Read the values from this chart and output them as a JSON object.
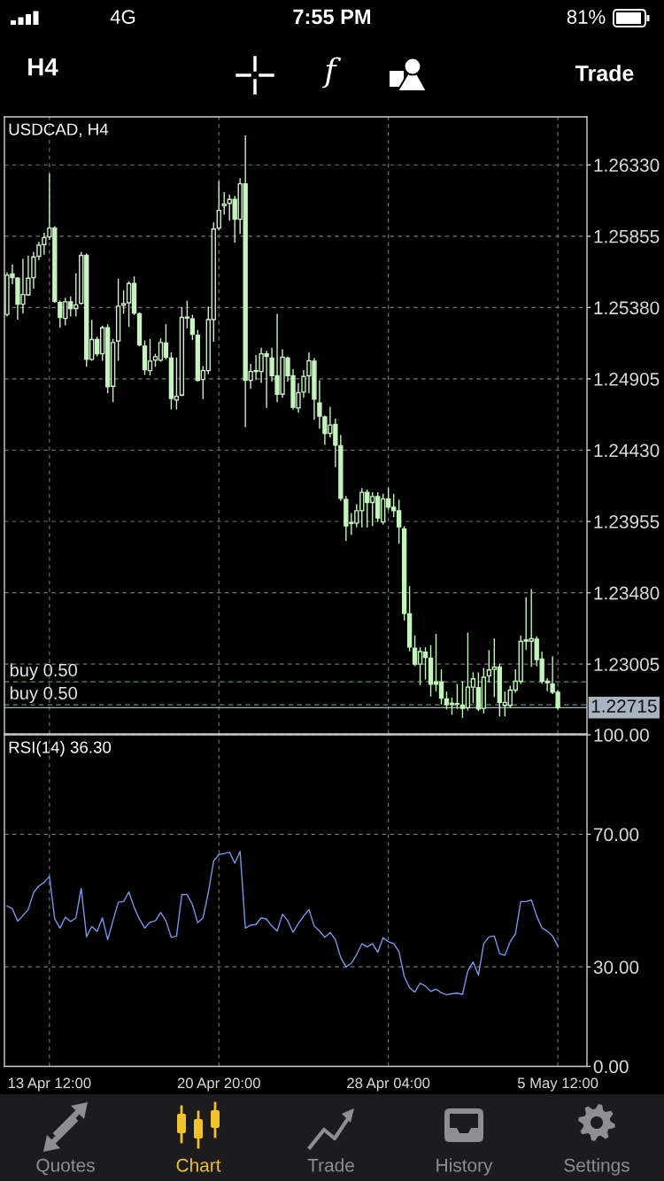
{
  "chart_data": [
    {
      "type": "other",
      "annotations": [
        "4G",
        "7:55 PM",
        "81%",
        "H4",
        "f",
        "Trade"
      ]
    },
    {
      "type": "candlestick",
      "title": "USDCAD, H4",
      "color": "#c6f4bf",
      "categories": [
        null,
        null,
        null,
        null,
        null,
        null,
        null,
        null,
        null,
        null,
        null,
        null,
        null,
        null,
        null,
        null,
        null,
        null,
        null,
        null,
        null,
        null,
        null,
        null,
        null,
        null,
        null,
        null,
        null,
        null,
        null,
        null,
        null,
        null,
        null,
        null,
        null,
        null,
        null,
        null,
        null,
        null,
        null,
        null,
        null,
        null,
        null,
        null,
        null,
        null,
        null,
        null,
        null,
        null,
        null,
        null,
        null,
        null,
        null,
        null,
        null,
        null,
        null,
        null,
        null,
        null,
        null,
        null,
        null,
        null,
        null,
        null,
        null,
        null,
        null,
        null,
        null,
        null,
        null,
        null,
        null,
        null,
        null,
        null,
        null,
        null,
        null,
        null,
        null,
        null,
        null,
        null,
        null,
        null,
        null,
        null,
        null,
        null,
        null,
        null,
        null,
        null,
        null,
        null,
        null,
        null,
        null,
        null,
        null,
        null
      ],
      "ohlc": [
        [
          1.25334,
          1.25609,
          1.25324,
          1.25595
        ],
        [
          1.25603,
          1.25662,
          1.2554,
          1.25579
        ],
        [
          1.25575,
          1.25579,
          1.25304,
          1.25402
        ],
        [
          1.25402,
          1.25701,
          1.25343,
          1.25467
        ],
        [
          1.25465,
          1.25721,
          1.25461,
          1.25575
        ],
        [
          1.25579,
          1.25746,
          1.2551,
          1.25717
        ],
        [
          1.25721,
          1.25815,
          1.25701,
          1.25795
        ],
        [
          1.25799,
          1.25874,
          1.25736,
          1.25846
        ],
        [
          1.2585,
          1.26267,
          1.25835,
          1.25909
        ],
        [
          1.25909,
          1.25917,
          1.25416,
          1.25422
        ],
        [
          1.25414,
          1.25422,
          1.25249,
          1.25314
        ],
        [
          1.25308,
          1.25442,
          1.25265,
          1.25418
        ],
        [
          1.25418,
          1.25451,
          1.25324,
          1.25373
        ],
        [
          1.25373,
          1.25603,
          1.25324,
          1.25398
        ],
        [
          1.25408,
          1.25746,
          1.25402,
          1.25727
        ],
        [
          1.25727,
          1.25736,
          1.2499,
          1.25035
        ],
        [
          1.25035,
          1.25294,
          1.25029,
          1.25167
        ],
        [
          1.25167,
          1.25182,
          1.25059,
          1.25072
        ],
        [
          1.25072,
          1.25255,
          1.25029,
          1.25245
        ],
        [
          1.25245,
          1.25265,
          1.24813,
          1.24852
        ],
        [
          1.24856,
          1.25167,
          1.24754,
          1.25147
        ],
        [
          1.25157,
          1.25569,
          1.25029,
          1.25389
        ],
        [
          1.25395,
          1.25491,
          1.25343,
          1.25406
        ],
        [
          1.25412,
          1.2555,
          1.25255,
          1.2554
        ],
        [
          1.2554,
          1.25583,
          1.25334,
          1.25343
        ],
        [
          1.25338,
          1.25343,
          1.25127,
          1.25131
        ],
        [
          1.25123,
          1.25157,
          1.24935,
          1.24966
        ],
        [
          1.2496,
          1.25167,
          1.24931,
          1.25023
        ],
        [
          1.25029,
          1.25068,
          1.2499,
          1.25053
        ],
        [
          1.25029,
          1.25171,
          1.25023,
          1.25147
        ],
        [
          1.25143,
          1.25265,
          1.25039,
          1.25049
        ],
        [
          1.25043,
          1.25078,
          1.24705,
          1.24774
        ],
        [
          1.24764,
          1.25043,
          1.24705,
          1.24789
        ],
        [
          1.24797,
          1.25379,
          1.24793,
          1.25314
        ],
        [
          1.2531,
          1.25422,
          1.25245,
          1.25316
        ],
        [
          1.25304,
          1.25328,
          1.25167,
          1.25202
        ],
        [
          1.25196,
          1.25226,
          1.24891,
          1.24895
        ],
        [
          1.24901,
          1.24986,
          1.24774,
          1.2496
        ],
        [
          1.2496,
          1.25383,
          1.24941,
          1.253
        ],
        [
          1.253,
          1.25943,
          1.25157,
          1.25903
        ],
        [
          1.25909,
          1.26218,
          1.25898,
          1.26027
        ],
        [
          1.26059,
          1.26145,
          1.26002,
          1.2607
        ],
        [
          1.26074,
          1.26129,
          1.25962,
          1.261
        ],
        [
          1.261,
          1.2612,
          1.25815,
          1.25968
        ],
        [
          1.25968,
          1.26237,
          1.25874,
          1.26204
        ],
        [
          1.26204,
          1.26522,
          1.24587,
          1.24895
        ],
        [
          1.24895,
          1.25,
          1.24842,
          1.24954
        ],
        [
          1.24954,
          1.25059,
          1.24901,
          1.2496
        ],
        [
          1.24954,
          1.25108,
          1.24882,
          1.25072
        ],
        [
          1.25072,
          1.25088,
          1.24715,
          1.25054
        ],
        [
          1.25043,
          1.25108,
          1.24891,
          1.24927
        ],
        [
          1.24925,
          1.25334,
          1.24754,
          1.24803
        ],
        [
          1.24803,
          1.25098,
          1.24783,
          1.25049
        ],
        [
          1.25043,
          1.25049,
          1.24891,
          1.24927
        ],
        [
          1.24925,
          1.24966,
          1.24705,
          1.24715
        ],
        [
          1.24711,
          1.24872,
          1.24685,
          1.24813
        ],
        [
          1.24817,
          1.2496,
          1.24783,
          1.24921
        ],
        [
          1.24925,
          1.25078,
          1.24813,
          1.25025
        ],
        [
          1.25023,
          1.25039,
          1.24636,
          1.2477
        ],
        [
          1.24744,
          1.24891,
          1.24577,
          1.24656
        ],
        [
          1.24652,
          1.24656,
          1.24469,
          1.24542
        ],
        [
          1.24542,
          1.24715,
          1.24518,
          1.24597
        ],
        [
          1.24601,
          1.24636,
          1.24322,
          1.24463
        ],
        [
          1.24459,
          1.24528,
          1.24096,
          1.24109
        ],
        [
          1.24101,
          1.24121,
          1.2383,
          1.23925
        ],
        [
          1.23942,
          1.24007,
          1.2387,
          1.23948
        ],
        [
          1.23944,
          1.24066,
          1.23919,
          1.24027
        ],
        [
          1.24027,
          1.24174,
          1.23919,
          1.24149
        ],
        [
          1.24149,
          1.24164,
          1.23919,
          1.24082
        ],
        [
          1.24082,
          1.24145,
          1.23929,
          1.24121
        ],
        [
          1.24121,
          1.24145,
          1.23958,
          1.23978
        ],
        [
          1.23952,
          1.24135,
          1.23938,
          1.24105
        ],
        [
          1.24105,
          1.24174,
          1.24037,
          1.2405
        ],
        [
          1.2405,
          1.24135,
          1.23988,
          1.24027
        ],
        [
          1.24027,
          1.24096,
          1.23811,
          1.23919
        ],
        [
          1.23905,
          1.23919,
          1.233,
          1.23343
        ],
        [
          1.23339,
          1.2352,
          1.23094,
          1.23119
        ],
        [
          1.23111,
          1.23192,
          1.22995,
          1.23005
        ],
        [
          1.23005,
          1.23113,
          1.22868,
          1.23088
        ],
        [
          1.23084,
          1.23113,
          1.22907,
          1.2305
        ],
        [
          1.23044,
          1.23127,
          1.22793,
          1.22872
        ],
        [
          1.22887,
          1.23202,
          1.22828,
          1.22872
        ],
        [
          1.22887,
          1.22966,
          1.2274,
          1.22779
        ],
        [
          1.22773,
          1.22818,
          1.22706,
          1.22736
        ],
        [
          1.22744,
          1.22779,
          1.22671,
          1.22736
        ],
        [
          1.22742,
          1.22868,
          1.2271,
          1.22738
        ],
        [
          1.2273,
          1.22887,
          1.22651,
          1.2271
        ],
        [
          1.22714,
          1.23211,
          1.227,
          1.22852
        ],
        [
          1.22852,
          1.22946,
          1.2275,
          1.22907
        ],
        [
          1.22848,
          1.22946,
          1.22695,
          1.22706
        ],
        [
          1.2271,
          1.22976,
          1.22681,
          1.22917
        ],
        [
          1.22927,
          1.23094,
          1.22887,
          1.22966
        ],
        [
          1.2297,
          1.23172,
          1.22789,
          1.22985
        ],
        [
          1.22985,
          1.23005,
          1.22661,
          1.2275
        ],
        [
          1.2273,
          1.22818,
          1.22661,
          1.2275
        ],
        [
          1.2273,
          1.22858,
          1.2272,
          1.22832
        ],
        [
          1.22832,
          1.22966,
          1.22818,
          1.22891
        ],
        [
          1.22891,
          1.23192,
          1.22877,
          1.23156
        ],
        [
          1.23158,
          1.23447,
          1.23103,
          1.23166
        ],
        [
          1.23158,
          1.235,
          1.22989,
          1.23174
        ],
        [
          1.23172,
          1.23186,
          1.22995,
          1.23035
        ],
        [
          1.23039,
          1.23084,
          1.22877,
          1.22891
        ],
        [
          1.22891,
          1.22907,
          1.22828,
          1.22881
        ],
        [
          1.22872,
          1.23054,
          1.22809,
          1.22818
        ],
        [
          1.22818,
          1.22828,
          1.22705,
          1.22715
        ],
        null,
        null,
        null,
        null,
        null
      ],
      "ylim": [
        1.2254,
        1.2665
      ],
      "yticks": [
        {
          "value": 1.2633,
          "label": "1.26330"
        },
        {
          "value": 1.25855,
          "label": "1.25855"
        },
        {
          "value": 1.2538,
          "label": "1.25380"
        },
        {
          "value": 1.24905,
          "label": "1.24905"
        },
        {
          "value": 1.2443,
          "label": "1.24430"
        },
        {
          "value": 1.23955,
          "label": "1.23955"
        },
        {
          "value": 1.2348,
          "label": "1.23480"
        },
        {
          "value": 1.23005,
          "label": "1.23005"
        }
      ],
      "ref_lines": [
        {
          "axis": "y",
          "value": 1.22887,
          "label": "buy 0.50",
          "color": "#6a8a6a",
          "line_style": "dashed"
        },
        {
          "axis": "y",
          "value": 1.22734,
          "label": "buy 0.50",
          "color": "#6a8a6a",
          "line_style": "dashed"
        },
        {
          "axis": "y",
          "value": 1.22715,
          "label": "1.22715",
          "color": "#a9b4c2",
          "line_style": "solid"
        }
      ],
      "grid": true,
      "tick_labels": "y"
    },
    {
      "type": "line",
      "title": "RSI(14) 36.30",
      "color": "#7b96e8",
      "categories": [
        null,
        null,
        null,
        null,
        null,
        null,
        null,
        null,
        "13 Apr 12:00",
        null,
        null,
        null,
        null,
        null,
        null,
        null,
        null,
        null,
        null,
        null,
        null,
        null,
        null,
        null,
        null,
        null,
        null,
        null,
        null,
        null,
        null,
        null,
        null,
        null,
        null,
        null,
        null,
        null,
        null,
        null,
        "20 Apr 20:00",
        null,
        null,
        null,
        null,
        null,
        null,
        null,
        null,
        null,
        null,
        null,
        null,
        null,
        null,
        null,
        null,
        null,
        null,
        null,
        null,
        null,
        null,
        null,
        null,
        null,
        null,
        null,
        null,
        null,
        null,
        null,
        "28 Apr 04:00",
        null,
        null,
        null,
        null,
        null,
        null,
        null,
        null,
        null,
        null,
        null,
        null,
        null,
        null,
        null,
        null,
        null,
        null,
        null,
        null,
        null,
        null,
        null,
        null,
        null,
        null,
        null,
        null,
        null,
        null,
        null,
        "5 May 12:00",
        null,
        null,
        null,
        null,
        null
      ],
      "values": [
        48.4,
        47.5,
        43.8,
        45.5,
        47.3,
        52.4,
        54.4,
        55.5,
        57.3,
        44.4,
        41.7,
        45.0,
        43.7,
        44.8,
        53.7,
        39.1,
        42.2,
        40.7,
        44.8,
        38.2,
        43.9,
        49.5,
        49.7,
        52.6,
        47.9,
        44.4,
        41.7,
        43.5,
        43.9,
        46.4,
        43.9,
        38.9,
        39.3,
        51.8,
        51.8,
        48.8,
        43.3,
        44.8,
        52.4,
        61.9,
        63.9,
        64.2,
        64.6,
        61.3,
        64.8,
        41.7,
        42.6,
        42.8,
        44.8,
        44.4,
        42.3,
        40.8,
        45.9,
        43.9,
        40.4,
        43.1,
        45.3,
        47.3,
        42.3,
        40.8,
        38.9,
        40.4,
        38.2,
        32.8,
        30.0,
        31.1,
        33.7,
        37.0,
        36.0,
        37.0,
        34.4,
        38.8,
        37.6,
        37.0,
        34.6,
        27.1,
        23.7,
        22.4,
        25.1,
        24.2,
        22.6,
        23.3,
        22.2,
        21.6,
        21.9,
        22.1,
        21.7,
        28.8,
        31.5,
        27.5,
        37.0,
        39.1,
        39.3,
        34.0,
        33.5,
        37.6,
        40.0,
        49.7,
        49.7,
        50.2,
        45.3,
        41.7,
        40.8,
        39.3,
        36.3,
        null,
        null,
        null,
        null,
        null
      ],
      "ylim": [
        0,
        100
      ],
      "yticks": [
        {
          "value": 100,
          "label": "100.00"
        },
        {
          "value": 70,
          "label": "70.00"
        },
        {
          "value": 30,
          "label": "30.00"
        },
        {
          "value": 0,
          "label": "0.00"
        }
      ],
      "grid": true
    },
    {
      "type": "other",
      "annotations": [
        "Quotes",
        "Chart",
        "Trade",
        "History",
        "Settings"
      ]
    }
  ]
}
